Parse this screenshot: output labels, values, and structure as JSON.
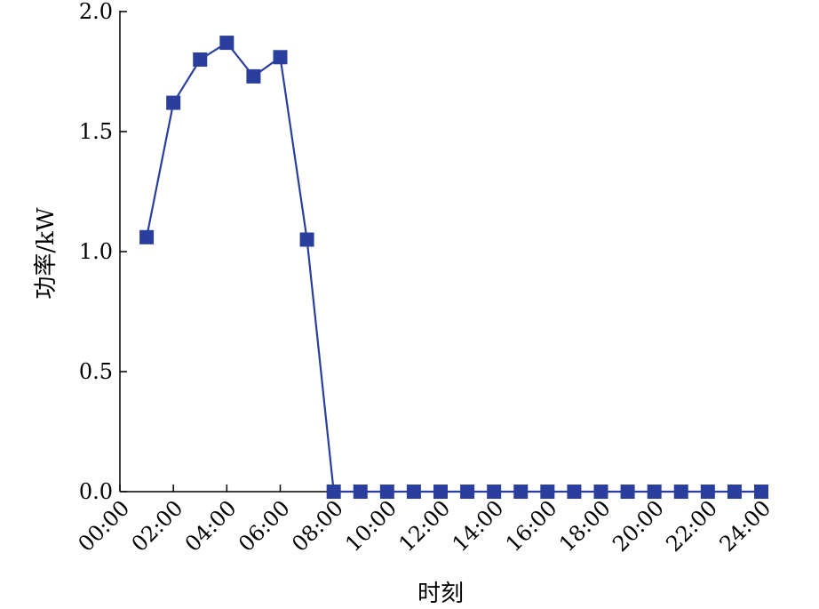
{
  "chart_data": {
    "type": "line",
    "title": "",
    "xlabel": "时刻",
    "ylabel": "功率/kW",
    "x_tick_labels": [
      "00:00",
      "02:00",
      "04:00",
      "06:00",
      "08:00",
      "10:00",
      "12:00",
      "14:00",
      "16:00",
      "18:00",
      "20:00",
      "22:00",
      "24:00"
    ],
    "y_tick_labels": [
      "0.0",
      "0.5",
      "1.0",
      "1.5",
      "2.0"
    ],
    "ylim": [
      0,
      2.0
    ],
    "xlim_hours": [
      0,
      24
    ],
    "grid": false,
    "legend": "none",
    "series": [
      {
        "color": "#2a3f9d",
        "marker": "square",
        "x": [
          "01:00",
          "02:00",
          "03:00",
          "04:00",
          "05:00",
          "06:00",
          "07:00",
          "08:00",
          "09:00",
          "10:00",
          "11:00",
          "12:00",
          "13:00",
          "14:00",
          "15:00",
          "16:00",
          "17:00",
          "18:00",
          "19:00",
          "20:00",
          "21:00",
          "22:00",
          "23:00",
          "24:00"
        ],
        "values": [
          1.06,
          1.62,
          1.8,
          1.87,
          1.73,
          1.81,
          1.05,
          0,
          0,
          0,
          0,
          0,
          0,
          0,
          0,
          0,
          0,
          0,
          0,
          0,
          0,
          0,
          0,
          0
        ]
      }
    ]
  }
}
